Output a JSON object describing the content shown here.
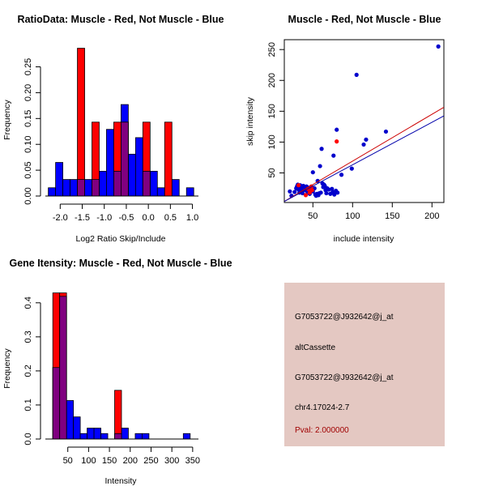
{
  "chart_data": [
    {
      "type": "bar",
      "id": "ratio-histogram",
      "title": "RatioData: Muscle - Red, Not Muscle - Blue",
      "xlabel": "Log2 Ratio Skip/Include",
      "ylabel": "Frequency",
      "xlim": [
        -2.3,
        1.1
      ],
      "ylim": [
        0,
        0.29
      ],
      "xticks": [
        -2.0,
        -1.5,
        -1.0,
        -0.5,
        0.0,
        0.5,
        1.0
      ],
      "xtick_labels": [
        "-2.0",
        "-1.5",
        "-1.0",
        "-0.5",
        "0.0",
        "0.5",
        "1.0"
      ],
      "yticks": [
        0,
        0.05,
        0.1,
        0.15,
        0.2,
        0.25
      ],
      "ytick_labels": [
        "0.00",
        "0.05",
        "0.10",
        "0.15",
        "0.20",
        "0.25"
      ],
      "bin_start": -2.27,
      "bin_width": 0.165,
      "series": [
        {
          "name": "Not Muscle",
          "color": "#0000ff",
          "values": [
            0.016,
            0.065,
            0.032,
            0.032,
            0.032,
            0.032,
            0.032,
            0.048,
            0.129,
            0.048,
            0.177,
            0.081,
            0.113,
            0.048,
            0.048,
            0.016,
            0.0,
            0.032,
            0.0,
            0.016
          ]
        },
        {
          "name": "Muscle",
          "color": "#ff0000",
          "values": [
            0,
            0,
            0,
            0,
            0.286,
            0,
            0.143,
            0,
            0,
            0.143,
            0.143,
            0,
            0,
            0.143,
            0,
            0,
            0.143,
            0,
            0,
            0
          ]
        }
      ],
      "overlap_color": "#800080"
    },
    {
      "type": "scatter",
      "id": "intensity-scatter",
      "title": "Muscle - Red, Not Muscle - Blue",
      "xlabel": "include intensity",
      "ylabel": "skip intensity",
      "xlim": [
        14,
        215
      ],
      "ylim": [
        2,
        266
      ],
      "xticks": [
        50,
        100,
        150,
        200
      ],
      "yticks": [
        50,
        100,
        150,
        200,
        250
      ],
      "series": [
        {
          "name": "Not Muscle",
          "color": "#0000cc",
          "points": [
            [
              21,
              20
            ],
            [
              23,
              13
            ],
            [
              27,
              19
            ],
            [
              29,
              25
            ],
            [
              30,
              28
            ],
            [
              31,
              31
            ],
            [
              32,
              27
            ],
            [
              33,
              22
            ],
            [
              33,
              18
            ],
            [
              34,
              30
            ],
            [
              35,
              26
            ],
            [
              36,
              24
            ],
            [
              36,
              20
            ],
            [
              37,
              17
            ],
            [
              38,
              29
            ],
            [
              39,
              27
            ],
            [
              40,
              24
            ],
            [
              41,
              22
            ],
            [
              42,
              28
            ],
            [
              43,
              19
            ],
            [
              44,
              26
            ],
            [
              45,
              23
            ],
            [
              46,
              16
            ],
            [
              47,
              21
            ],
            [
              48,
              26
            ],
            [
              50,
              51
            ],
            [
              50,
              20
            ],
            [
              52,
              25
            ],
            [
              53,
              15
            ],
            [
              54,
              13
            ],
            [
              55,
              16
            ],
            [
              56,
              37
            ],
            [
              57,
              14
            ],
            [
              58,
              17
            ],
            [
              59,
              61
            ],
            [
              60,
              18
            ],
            [
              61,
              89
            ],
            [
              62,
              33
            ],
            [
              63,
              27
            ],
            [
              65,
              29
            ],
            [
              66,
              22
            ],
            [
              67,
              17
            ],
            [
              68,
              25
            ],
            [
              70,
              23
            ],
            [
              72,
              16
            ],
            [
              74,
              24
            ],
            [
              75,
              19
            ],
            [
              76,
              78
            ],
            [
              77,
              15
            ],
            [
              79,
              21
            ],
            [
              80,
              120
            ],
            [
              81,
              18
            ],
            [
              86,
              47
            ],
            [
              99,
              57
            ],
            [
              105,
              209
            ],
            [
              114,
              96
            ],
            [
              117,
              104
            ],
            [
              142,
              117
            ],
            [
              208,
              255
            ],
            [
              64,
              31
            ],
            [
              37,
              21
            ],
            [
              31,
              24
            ]
          ]
        },
        {
          "name": "Muscle",
          "color": "#ff0000",
          "points": [
            [
              32,
              30
            ],
            [
              41,
              14
            ],
            [
              44,
              24
            ],
            [
              46,
              18
            ],
            [
              48,
              28
            ],
            [
              49,
              22
            ],
            [
              80,
              101
            ]
          ]
        }
      ],
      "regression_lines": [
        {
          "name": "Muscle fit",
          "color": "#cc0000",
          "intercept": -6.9,
          "slope": 0.76
        },
        {
          "name": "Not Muscle fit",
          "color": "#0000aa",
          "intercept": -5.9,
          "slope": 0.69
        }
      ]
    },
    {
      "type": "bar",
      "id": "intensity-histogram",
      "title": "Gene Itensity: Muscle - Red, Not Muscle - Blue",
      "xlabel": "Intensity",
      "ylabel": "Frequency",
      "xlim": [
        0,
        360
      ],
      "ylim": [
        0,
        0.44
      ],
      "xticks": [
        50,
        100,
        150,
        200,
        250,
        300,
        350
      ],
      "xtick_labels": [
        "50",
        "100",
        "150",
        "200",
        "250",
        "300",
        "350"
      ],
      "yticks": [
        0,
        0.1,
        0.2,
        0.3,
        0.4
      ],
      "ytick_labels": [
        "0.0",
        "0.1",
        "0.2",
        "0.3",
        "0.4"
      ],
      "bin_start": 14,
      "bin_width": 16.5,
      "series": [
        {
          "name": "Not Muscle",
          "color": "#0000ff",
          "values": [
            0.21,
            0.419,
            0.113,
            0.065,
            0.016,
            0.032,
            0.032,
            0.016,
            0,
            0.016,
            0.032,
            0,
            0.016,
            0.016,
            0,
            0,
            0,
            0,
            0,
            0.016
          ]
        },
        {
          "name": "Muscle",
          "color": "#ff0000",
          "values": [
            0.429,
            0.429,
            0,
            0,
            0,
            0,
            0,
            0,
            0,
            0.143,
            0,
            0,
            0,
            0,
            0,
            0,
            0,
            0,
            0,
            0
          ]
        }
      ],
      "overlap_color": "#800080"
    }
  ],
  "info_panel": {
    "probe_id": "G7053722@J932642@j_at",
    "event_type": "altCassette",
    "probe_id_2": "G7053722@J932642@j_at",
    "location": "chr4.17024-2.7",
    "pval": "Pval: 2.000000",
    "background_color": "#e4c8c2",
    "pval_color": "#a00000"
  }
}
